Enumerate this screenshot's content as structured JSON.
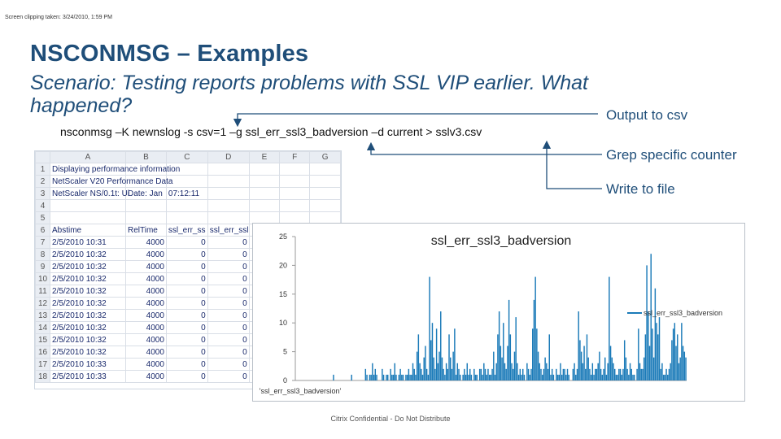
{
  "clipping_note": "Screen clipping taken: 3/24/2010, 1:59 PM",
  "title": "NSCONMSG – Examples",
  "scenario": "Scenario: Testing reports problems with SSL VIP earlier.  What happened?",
  "command": "nsconmsg –K newnslog -s csv=1 –g ssl_err_ssl3_badversion –d current > sslv3.csv",
  "annotations": {
    "output": "Output to csv",
    "grep": "Grep specific counter",
    "write": "Write to file"
  },
  "footer": "Citrix Confidential - Do Not Distribute",
  "spreadsheet": {
    "columns": [
      "",
      "A",
      "B",
      "C",
      "D",
      "E",
      "F",
      "G"
    ],
    "rows": [
      [
        "1",
        "Displaying performance information",
        "",
        "",
        "",
        "",
        "",
        ""
      ],
      [
        "2",
        "NetScaler V20 Performance Data",
        "",
        "",
        "",
        "",
        "",
        ""
      ],
      [
        "3",
        "NetScaler NS/0.1t: Ui",
        "Date: Jan",
        "07:12:11",
        "",
        "",
        "",
        ""
      ],
      [
        "4",
        "",
        "",
        "",
        "",
        "",
        "",
        ""
      ],
      [
        "5",
        "",
        "",
        "",
        "",
        "",
        "",
        ""
      ],
      [
        "6",
        "Abstime",
        "RelTime",
        "ssl_err_ss",
        "ssl_err_ssl",
        "",
        "",
        ""
      ],
      [
        "7",
        "2/5/2010 10:31",
        "4000",
        "0",
        "0",
        "",
        "",
        ""
      ],
      [
        "8",
        "2/5/2010 10:32",
        "4000",
        "0",
        "0",
        "",
        "",
        ""
      ],
      [
        "9",
        "2/5/2010 10:32",
        "4000",
        "0",
        "0",
        "",
        "",
        ""
      ],
      [
        "10",
        "2/5/2010 10:32",
        "4000",
        "0",
        "0",
        "",
        "",
        ""
      ],
      [
        "11",
        "2/5/2010 10:32",
        "4000",
        "0",
        "0",
        "",
        "",
        ""
      ],
      [
        "12",
        "2/5/2010 10:32",
        "4000",
        "0",
        "0",
        "",
        "",
        ""
      ],
      [
        "13",
        "2/5/2010 10:32",
        "4000",
        "0",
        "0",
        "",
        "",
        ""
      ],
      [
        "14",
        "2/5/2010 10:32",
        "4000",
        "0",
        "0",
        "",
        "",
        ""
      ],
      [
        "15",
        "2/5/2010 10:32",
        "4000",
        "0",
        "0",
        "",
        "",
        ""
      ],
      [
        "16",
        "2/5/2010 10:32",
        "4000",
        "0",
        "0",
        "",
        "",
        ""
      ],
      [
        "17",
        "2/5/2010 10:33",
        "4000",
        "0",
        "0",
        "",
        "",
        ""
      ],
      [
        "18",
        "2/5/2010 10:33",
        "4000",
        "0",
        "0",
        "",
        "",
        ""
      ]
    ]
  },
  "chart_data": {
    "type": "bar",
    "title": "ssl_err_ssl3_badversion",
    "xlabel": "'ssl_err_ssl3_badversion'",
    "ylim": [
      0,
      25
    ],
    "yticks": [
      "0",
      "5",
      "10",
      "15",
      "20",
      "25"
    ],
    "grid": false,
    "legend": "right",
    "series": [
      {
        "name": "ssl_err_ssl3_badversion",
        "color": "#1a7ab8",
        "values": [
          0,
          0,
          0,
          0,
          0,
          0,
          0,
          0,
          0,
          0,
          0,
          0,
          0,
          0,
          0,
          0,
          0,
          0,
          0,
          0,
          0,
          0,
          0,
          0,
          0,
          0,
          0,
          1,
          0,
          0,
          0,
          0,
          0,
          0,
          0,
          0,
          0,
          0,
          0,
          0,
          1,
          0,
          0,
          0,
          0,
          0,
          0,
          0,
          0,
          0,
          2,
          1,
          0,
          1,
          1,
          3,
          1,
          2,
          1,
          0,
          0,
          0,
          2,
          1,
          0,
          1,
          1,
          0,
          2,
          1,
          1,
          3,
          1,
          0,
          1,
          2,
          1,
          1,
          0,
          1,
          1,
          2,
          1,
          1,
          3,
          2,
          1,
          5,
          8,
          3,
          2,
          1,
          4,
          6,
          2,
          1,
          18,
          7,
          10,
          4,
          2,
          9,
          3,
          5,
          12,
          4,
          2,
          1,
          3,
          2,
          8,
          4,
          2,
          5,
          9,
          1,
          3,
          2,
          1,
          0,
          1,
          2,
          1,
          3,
          1,
          2,
          1,
          0,
          2,
          1,
          1,
          0,
          2,
          2,
          1,
          3,
          2,
          1,
          2,
          1,
          1,
          2,
          5,
          1,
          3,
          8,
          12,
          6,
          4,
          10,
          3,
          2,
          6,
          14,
          8,
          3,
          2,
          5,
          11,
          3,
          1,
          2,
          1,
          2,
          1,
          0,
          3,
          2,
          1,
          2,
          9,
          14,
          18,
          9,
          5,
          3,
          2,
          1,
          2,
          4,
          3,
          2,
          8,
          1,
          2,
          1,
          0,
          2,
          1,
          1,
          3,
          1,
          2,
          2,
          1,
          2,
          1,
          0,
          0,
          2,
          3,
          1,
          2,
          12,
          7,
          5,
          3,
          6,
          2,
          8,
          4,
          2,
          1,
          3,
          1,
          2,
          2,
          3,
          5,
          2,
          1,
          2,
          4,
          1,
          3,
          18,
          6,
          4,
          3,
          2,
          1,
          1,
          2,
          2,
          1,
          2,
          7,
          4,
          2,
          1,
          3,
          2,
          1,
          1,
          0,
          2,
          9,
          3,
          2,
          2,
          4,
          8,
          20,
          12,
          6,
          22,
          9,
          4,
          16,
          10,
          8,
          11,
          2,
          3,
          1,
          1,
          2,
          1,
          2,
          3,
          7,
          9,
          10,
          6,
          8,
          3,
          4,
          10,
          6,
          5,
          4
        ]
      }
    ]
  }
}
